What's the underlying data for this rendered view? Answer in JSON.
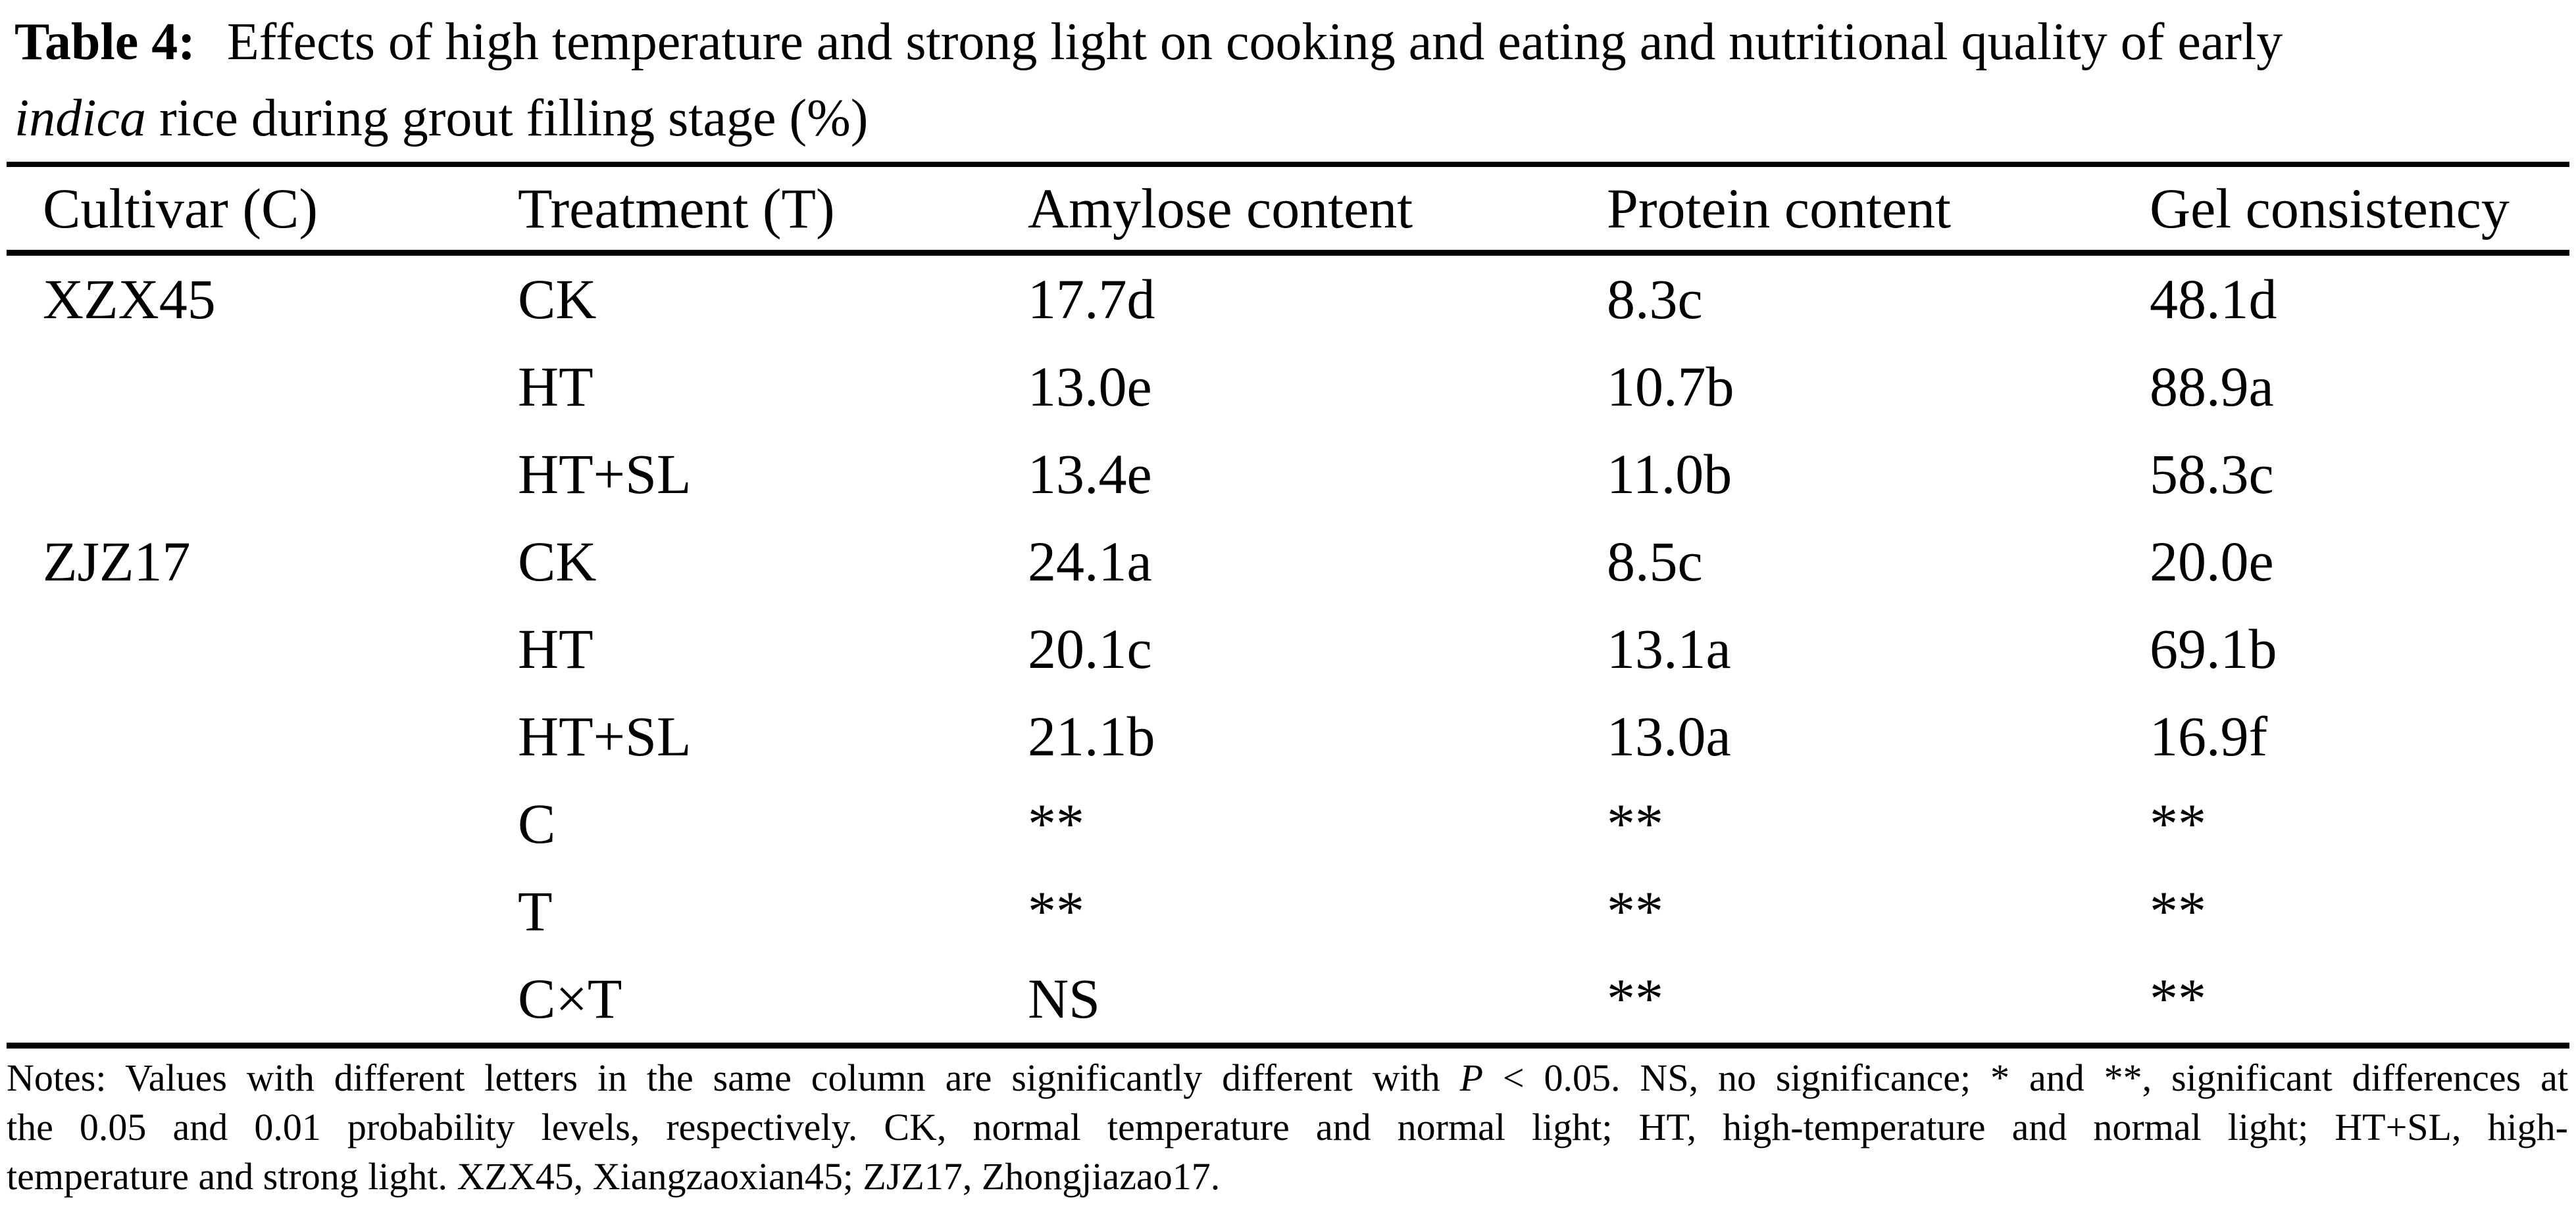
{
  "colors": {
    "text": "#000000",
    "background": "#ffffff",
    "rule": "#000000"
  },
  "title": {
    "label": "Table 4:",
    "line1_rest": "Effects of high temperature and strong light on cooking and eating and nutritional quality of early",
    "line2_italic": "indica",
    "line2_rest": " rice during grout filling stage (%)"
  },
  "table": {
    "columns": [
      "Cultivar (C)",
      "Treatment (T)",
      "Amylose content",
      "Protein content",
      "Gel consistency"
    ],
    "rows": [
      {
        "cultivar": "XZX45",
        "treatment": "CK",
        "amylose": "17.7d",
        "protein": "8.3c",
        "gel": "48.1d"
      },
      {
        "cultivar": "",
        "treatment": "HT",
        "amylose": "13.0e",
        "protein": "10.7b",
        "gel": "88.9a"
      },
      {
        "cultivar": "",
        "treatment": "HT+SL",
        "amylose": "13.4e",
        "protein": "11.0b",
        "gel": "58.3c"
      },
      {
        "cultivar": "ZJZ17",
        "treatment": "CK",
        "amylose": "24.1a",
        "protein": "8.5c",
        "gel": "20.0e"
      },
      {
        "cultivar": "",
        "treatment": "HT",
        "amylose": "20.1c",
        "protein": "13.1a",
        "gel": "69.1b"
      },
      {
        "cultivar": "",
        "treatment": "HT+SL",
        "amylose": "21.1b",
        "protein": "13.0a",
        "gel": "16.9f"
      },
      {
        "cultivar": "",
        "treatment": "C",
        "amylose": "**",
        "protein": "**",
        "gel": "**"
      },
      {
        "cultivar": "",
        "treatment": "T",
        "amylose": "**",
        "protein": "**",
        "gel": "**"
      },
      {
        "cultivar": "",
        "treatment": "C×T",
        "amylose": "NS",
        "protein": "**",
        "gel": "**"
      }
    ]
  },
  "notes": {
    "line1_a": "Notes: Values with different letters in the same column are significantly different with ",
    "line1_p": "P",
    "line1_b": " < 0.05. NS, no significance; * and **, significant differences at",
    "line2": "the 0.05 and 0.01 probability levels, respectively. CK, normal temperature and normal light; HT, high-temperature and normal light; HT+SL, high-",
    "line3": "temperature and strong light. XZX45, Xiangzaoxian45; ZJZ17, Zhongjiazao17."
  }
}
